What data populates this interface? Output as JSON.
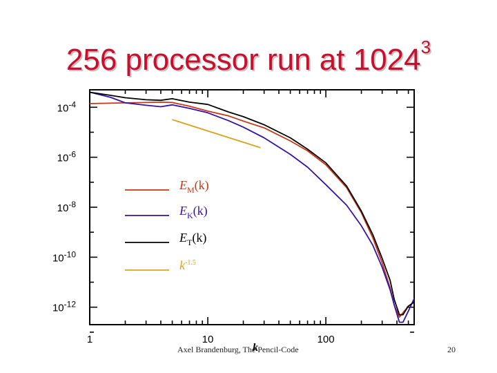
{
  "slide": {
    "title": "256 processor run at 1024",
    "title_exponent": "3",
    "footer": "Axel Brandenburg, The Pencil-Code",
    "page_number": "20"
  },
  "chart_data": {
    "type": "line",
    "title": "",
    "xlabel": "k",
    "ylabel": "",
    "xscale": "log",
    "yscale": "log",
    "xlim": [
      1,
      560
    ],
    "ylim": [
      2e-13,
      0.0005
    ],
    "x_tick_labels": [
      {
        "value": 1,
        "label": "1"
      },
      {
        "value": 10,
        "label": "10"
      },
      {
        "value": 100,
        "label": "100"
      }
    ],
    "y_tick_labels": [
      {
        "value": 0.0001,
        "label": "10",
        "exponent": "-4"
      },
      {
        "value": 1e-06,
        "label": "10",
        "exponent": "-6"
      },
      {
        "value": 1e-08,
        "label": "10",
        "exponent": "-8"
      },
      {
        "value": 1e-10,
        "label": "10",
        "exponent": "-10"
      },
      {
        "value": 1e-12,
        "label": "10",
        "exponent": "-12"
      }
    ],
    "legend_position": "middle-left",
    "series": [
      {
        "name": "EM(k)",
        "label_main": "E",
        "label_sub": "M",
        "label_arg": "(k)",
        "color": "#cc3311",
        "x": [
          1,
          2,
          3,
          4,
          5,
          7,
          10,
          15,
          20,
          30,
          50,
          70,
          100,
          150,
          200,
          250,
          300,
          350,
          380,
          420,
          450,
          500,
          560
        ],
        "y": [
          0.00014,
          0.00015,
          0.000155,
          0.00016,
          0.000155,
          0.00011,
          7e-05,
          4.5e-05,
          2.8e-05,
          1.5e-05,
          4.5e-06,
          1.8e-06,
          5e-07,
          6e-08,
          6e-09,
          6e-10,
          6e-11,
          6e-12,
          1.2e-12,
          4e-13,
          6e-13,
          1.1e-12,
          1.6e-12
        ]
      },
      {
        "name": "EK(k)",
        "label_main": "E",
        "label_sub": "K",
        "label_arg": "(k)",
        "color": "#3311aa",
        "x": [
          1,
          1.5,
          2,
          3,
          4,
          5,
          7,
          10,
          15,
          20,
          30,
          50,
          70,
          100,
          150,
          200,
          250,
          300,
          350,
          380,
          420,
          450,
          500,
          560
        ],
        "y": [
          0.0004,
          0.00025,
          0.00015,
          0.00012,
          0.000105,
          0.000125,
          9e-05,
          6e-05,
          2.9e-05,
          1.6e-05,
          6e-06,
          1.3e-06,
          4e-07,
          8e-08,
          1.2e-08,
          1.8e-09,
          3e-10,
          4e-11,
          5e-12,
          1.2e-12,
          2.5e-13,
          2.5e-13,
          7e-13,
          2.2e-12
        ]
      },
      {
        "name": "ET(k)",
        "label_main": "E",
        "label_sub": "T",
        "label_arg": "(k)",
        "color": "#000000",
        "x": [
          1,
          1.5,
          2,
          3,
          4,
          5,
          7,
          10,
          15,
          20,
          30,
          50,
          70,
          100,
          150,
          200,
          250,
          300,
          350,
          380,
          420,
          450,
          500,
          560
        ],
        "y": [
          0.0004,
          0.0003,
          0.00024,
          0.0002,
          0.00019,
          0.00022,
          0.00016,
          0.00013,
          6.5e-05,
          4.2e-05,
          2e-05,
          6e-06,
          2.1e-06,
          6e-07,
          7e-08,
          7e-09,
          8e-10,
          9e-11,
          1.2e-11,
          2e-12,
          5e-13,
          5e-13,
          1.1e-12,
          1.6e-12
        ]
      },
      {
        "name": "k^-1.5",
        "label_main": "k",
        "label_sup": "-1.5",
        "color": "#d9a21b",
        "x": [
          5,
          28
        ],
        "y": [
          3.2e-05,
          2.4e-06
        ]
      }
    ]
  }
}
